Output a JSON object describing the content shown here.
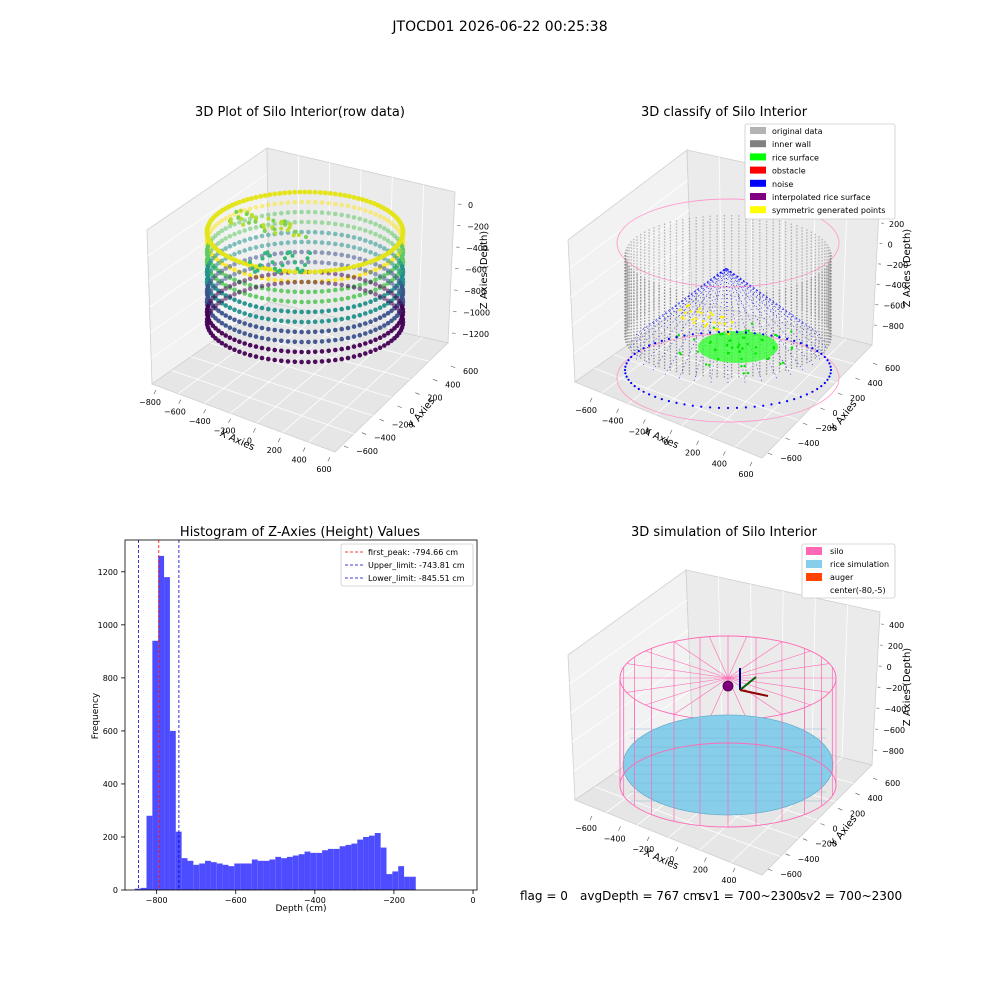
{
  "figure": {
    "suptitle": "JTOCD01 2026-06-22 00:25:38",
    "footer": {
      "flag": "flag = 0",
      "avg_depth": "avgDepth = 767 cm",
      "sv1": "sv1 = 700~2300",
      "sv2": "sv2 = 700~2300"
    }
  },
  "chart_data": [
    {
      "type": "scatter",
      "projection": "3d",
      "title": "3D Plot of Silo Interior(row data)",
      "xlabel": "X Axies",
      "ylabel": "Y Axies",
      "zlabel": "Z Axies (Depth)",
      "x_ticks": [
        "−800",
        "−600",
        "−400",
        "−200",
        "0",
        "200",
        "400",
        "600"
      ],
      "y_ticks": [
        "−600",
        "−400",
        "−200",
        "0",
        "200",
        "400",
        "600"
      ],
      "z_ticks": [
        "0",
        "−200",
        "−400",
        "−600",
        "−800",
        "−1000",
        "−1200"
      ],
      "colormap": "viridis",
      "grid": true
    },
    {
      "type": "scatter",
      "projection": "3d",
      "title": "3D classify of Silo Interior",
      "zlabel": "Z Axies (Depth)",
      "xlabel": "X Axies",
      "ylabel": "Y Axies",
      "x_ticks": [
        "−600",
        "−400",
        "−200",
        "0",
        "200",
        "400",
        "600"
      ],
      "y_ticks": [
        "−600",
        "−400",
        "−200",
        "0",
        "200",
        "400",
        "600"
      ],
      "z_ticks": [
        "200",
        "0",
        "−200",
        "−400",
        "−600",
        "−800"
      ],
      "legend_position": "top-right",
      "legend": [
        {
          "label": "original data",
          "color": "#b3b3b3"
        },
        {
          "label": "inner wall",
          "color": "#808080"
        },
        {
          "label": "rice surface",
          "color": "#00ff00"
        },
        {
          "label": "obstacle",
          "color": "#ff0000"
        },
        {
          "label": "noise",
          "color": "#0000ff"
        },
        {
          "label": "interpolated rice surface",
          "color": "#800080"
        },
        {
          "label": "symmetric generated points",
          "color": "#ffff00"
        }
      ],
      "grid": true
    },
    {
      "type": "bar",
      "title": "Histogram of Z-Axies (Height) Values",
      "xlabel": "Depth (cm)",
      "ylabel": "Frequency",
      "xlim": [
        -880,
        10
      ],
      "ylim": [
        0,
        1320
      ],
      "x_ticks": [
        -800,
        -600,
        -400,
        -200,
        0
      ],
      "y_ticks": [
        0,
        200,
        400,
        600,
        800,
        1000,
        1200
      ],
      "bin_width": 14.8,
      "bin_start": -870,
      "bar_color": "#4d4dff",
      "values": [
        0,
        5,
        8,
        280,
        940,
        1260,
        1180,
        600,
        220,
        120,
        110,
        95,
        100,
        110,
        105,
        100,
        95,
        90,
        100,
        100,
        100,
        115,
        110,
        110,
        115,
        125,
        120,
        125,
        130,
        135,
        145,
        140,
        140,
        150,
        155,
        155,
        165,
        170,
        175,
        190,
        200,
        205,
        215,
        160,
        60,
        70,
        90,
        50,
        50
      ],
      "lines": [
        {
          "label": "first_peak: -794.66 cm",
          "value": -794.66,
          "color": "#ff0000"
        },
        {
          "label": "Upper_limit: -743.81 cm",
          "value": -743.81,
          "color": "#0000cc"
        },
        {
          "label": "Lower_limit: -845.51 cm",
          "value": -845.51,
          "color": "#0000cc"
        }
      ],
      "legend_position": "top-right"
    },
    {
      "type": "surface",
      "projection": "3d",
      "title": "3D simulation of Silo Interior",
      "zlabel": "Z Axies (Depth)",
      "xlabel": "X Axies",
      "ylabel": "Y Axies",
      "x_ticks": [
        "−600",
        "−400",
        "−200",
        "0",
        "200",
        "400"
      ],
      "y_ticks": [
        "−600",
        "−400",
        "−200",
        "0",
        "200",
        "400",
        "600"
      ],
      "z_ticks": [
        "400",
        "200",
        "0",
        "−200",
        "−400",
        "−600",
        "−800"
      ],
      "legend_position": "top-right",
      "legend": [
        {
          "label": "silo",
          "color": "#ff69b4"
        },
        {
          "label": "rice simulation",
          "color": "#87ceeb"
        },
        {
          "label": "auger",
          "color": "#ff4500"
        },
        {
          "label": "center(-80,-5)",
          "color": ""
        }
      ],
      "grid": true
    }
  ]
}
